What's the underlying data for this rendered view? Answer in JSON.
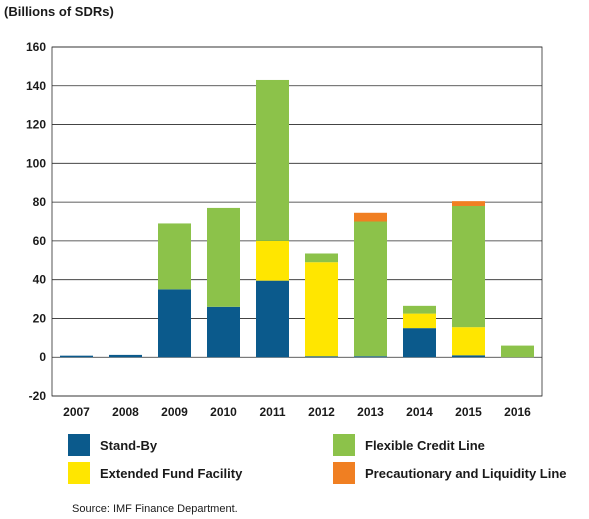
{
  "unit_label": "(Billions of SDRs)",
  "source": "Source: IMF Finance Department.",
  "colors": {
    "Stand-By": "#0b5a8c",
    "Extended Fund Facility": "#ffe600",
    "Flexible Credit Line": "#8cc24a",
    "Precautionary and Liquidity Line": "#f07f22"
  },
  "chart_data": {
    "type": "bar",
    "stacked": true,
    "title": "",
    "xlabel": "",
    "ylabel": "(Billions of SDRs)",
    "ylim": [
      -20,
      160
    ],
    "yticks": [
      -20,
      0,
      20,
      40,
      60,
      80,
      100,
      120,
      140,
      160
    ],
    "grid": true,
    "legend_position": "bottom",
    "categories": [
      "2007",
      "2008",
      "2009",
      "2010",
      "2011",
      "2012",
      "2013",
      "2014",
      "2015",
      "2016"
    ],
    "series": [
      {
        "name": "Stand-By",
        "values": [
          0.8,
          1.2,
          35,
          26,
          39.5,
          0.5,
          0.5,
          15,
          1,
          0
        ]
      },
      {
        "name": "Extended Fund Facility",
        "values": [
          0,
          0,
          0,
          0,
          20.5,
          48.5,
          0,
          7.5,
          14.5,
          0
        ]
      },
      {
        "name": "Flexible Credit Line",
        "values": [
          0,
          0,
          34,
          51,
          83,
          4.5,
          69.5,
          4,
          62.5,
          6
        ]
      },
      {
        "name": "Precautionary and Liquidity Line",
        "values": [
          0,
          0,
          0,
          0,
          0,
          0,
          4.5,
          0,
          2.5,
          0
        ]
      }
    ]
  }
}
